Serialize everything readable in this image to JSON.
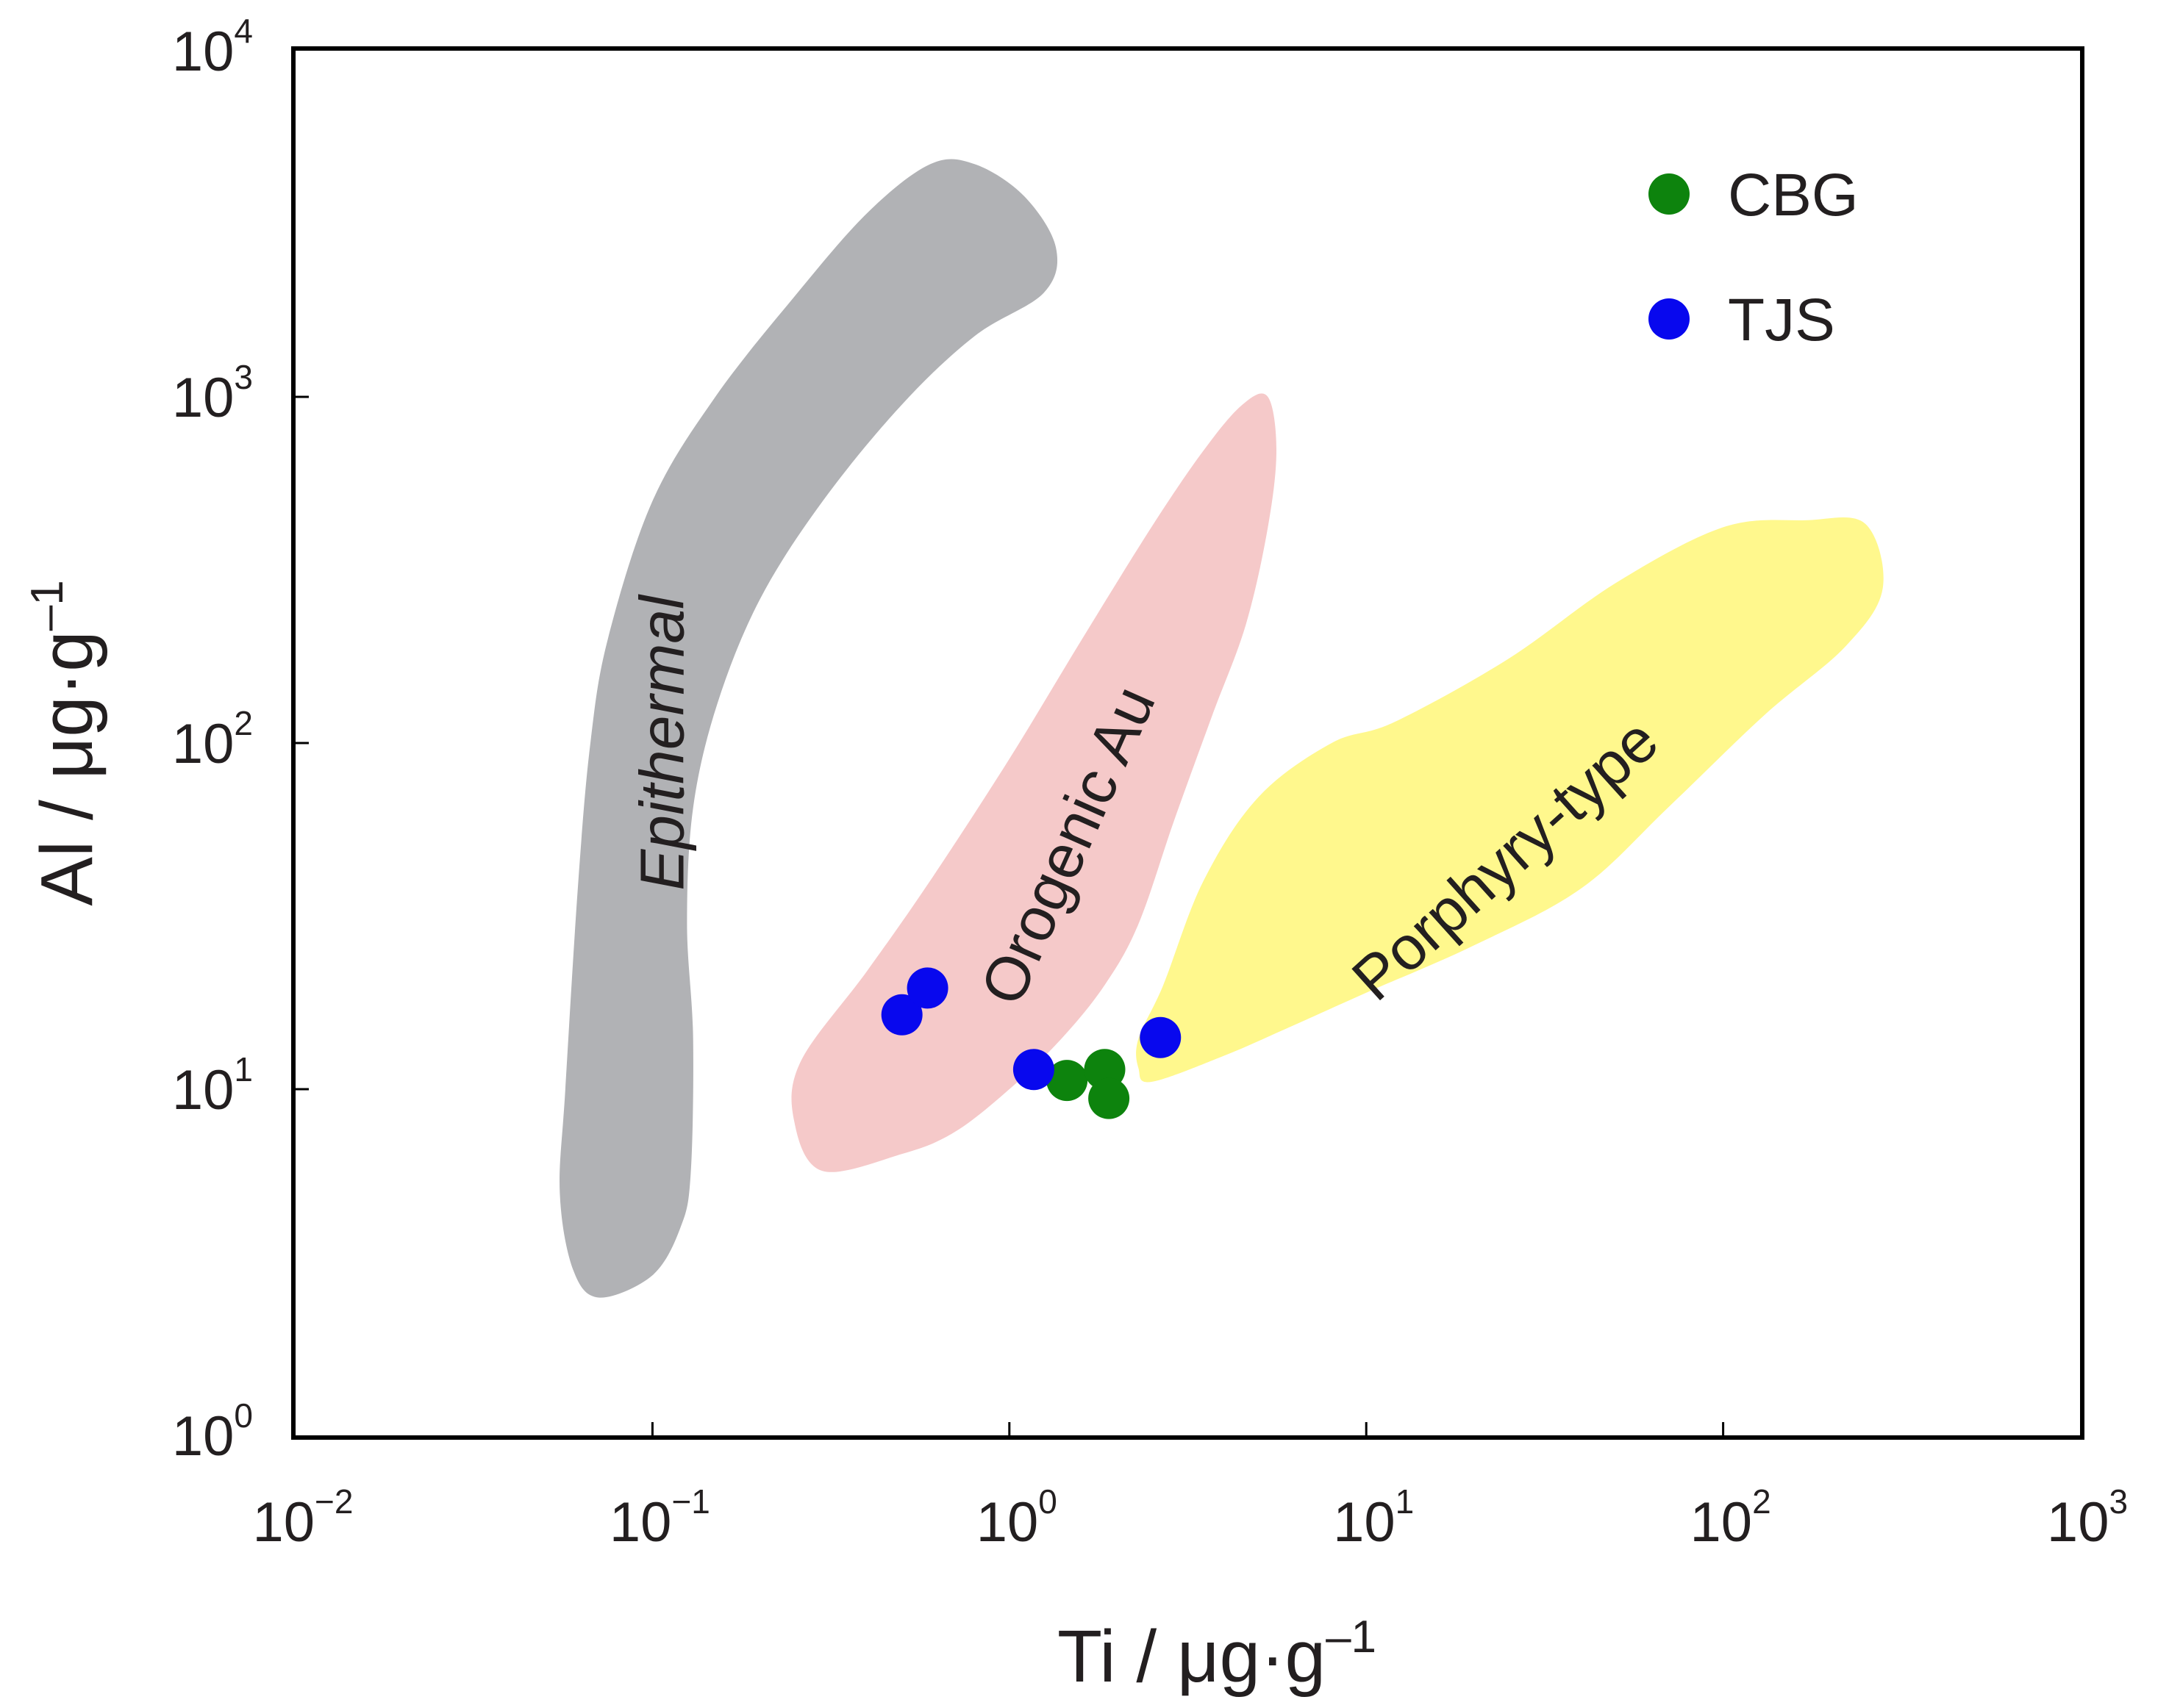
{
  "chart_data": {
    "type": "scatter",
    "xlabel": "Ti / μg·g",
    "xlabel_exp": "–1",
    "ylabel": "Al / μg·g",
    "ylabel_exp": "–1",
    "x_scale": "log",
    "y_scale": "log",
    "xlim": [
      0.01,
      1000
    ],
    "ylim": [
      1,
      10000
    ],
    "x_ticks": [
      {
        "value": 0.01,
        "base": "10",
        "exp": "−2"
      },
      {
        "value": 0.1,
        "base": "10",
        "exp": "−1"
      },
      {
        "value": 1,
        "base": "10",
        "exp": "0"
      },
      {
        "value": 10,
        "base": "10",
        "exp": "1"
      },
      {
        "value": 100,
        "base": "10",
        "exp": "2"
      },
      {
        "value": 1000,
        "base": "10",
        "exp": "3"
      }
    ],
    "y_ticks": [
      {
        "value": 1,
        "base": "10",
        "exp": "0"
      },
      {
        "value": 10,
        "base": "10",
        "exp": "1"
      },
      {
        "value": 100,
        "base": "10",
        "exp": "2"
      },
      {
        "value": 1000,
        "base": "10",
        "exp": "3"
      },
      {
        "value": 10000,
        "base": "10",
        "exp": "4"
      }
    ],
    "grid": false,
    "legend_position": "top-right",
    "fields": [
      {
        "name": "Epithermal",
        "color": "#b1b2b5",
        "label_at": [
          0.11,
          100
        ],
        "label_rotation": -90,
        "label_italic": true,
        "outline": [
          [
            0.071,
            2.5
          ],
          [
            0.1,
            2.9
          ],
          [
            0.12,
            4.0
          ],
          [
            0.128,
            5.7
          ],
          [
            0.13,
            14
          ],
          [
            0.125,
            30
          ],
          [
            0.13,
            65
          ],
          [
            0.152,
            130
          ],
          [
            0.2,
            260
          ],
          [
            0.3,
            500
          ],
          [
            0.5,
            950
          ],
          [
            0.8,
            1500
          ],
          [
            1.25,
            2000
          ],
          [
            1.35,
            2700
          ],
          [
            1.1,
            3800
          ],
          [
            0.8,
            4700
          ],
          [
            0.6,
            4700
          ],
          [
            0.4,
            3400
          ],
          [
            0.25,
            1950
          ],
          [
            0.15,
            1000
          ],
          [
            0.1,
            500
          ],
          [
            0.075,
            200
          ],
          [
            0.067,
            100
          ],
          [
            0.062,
            40
          ],
          [
            0.057,
            10
          ],
          [
            0.055,
            5
          ],
          [
            0.06,
            3
          ]
        ]
      },
      {
        "name": "Orogenic Au",
        "color": "#f5c9c9",
        "label_at": [
          1.5,
          50
        ],
        "label_rotation": -66,
        "label_italic": false,
        "outline": [
          [
            0.3,
            5.8
          ],
          [
            0.5,
            6.5
          ],
          [
            0.7,
            7.5
          ],
          [
            1.0,
            10
          ],
          [
            1.4,
            14
          ],
          [
            1.85,
            20
          ],
          [
            2.3,
            30
          ],
          [
            2.9,
            60
          ],
          [
            3.7,
            120
          ],
          [
            4.6,
            220
          ],
          [
            5.3,
            420
          ],
          [
            5.6,
            700
          ],
          [
            5.3,
            1000
          ],
          [
            4.5,
            950
          ],
          [
            3.5,
            700
          ],
          [
            2.5,
            420
          ],
          [
            1.6,
            200
          ],
          [
            1.0,
            90
          ],
          [
            0.6,
            40
          ],
          [
            0.4,
            22
          ],
          [
            0.26,
            12
          ],
          [
            0.25,
            8
          ]
        ]
      },
      {
        "name": "Porphyry-type",
        "color": "#fff88d",
        "label_at": [
          25,
          45
        ],
        "label_rotation": -42,
        "label_italic": false,
        "outline": [
          [
            2.5,
            10.5
          ],
          [
            4,
            12.5
          ],
          [
            6,
            15
          ],
          [
            10,
            19
          ],
          [
            20,
            26
          ],
          [
            40,
            38
          ],
          [
            70,
            65
          ],
          [
            130,
            120
          ],
          [
            220,
            190
          ],
          [
            280,
            280
          ],
          [
            250,
            430
          ],
          [
            170,
            440
          ],
          [
            100,
            420
          ],
          [
            50,
            290
          ],
          [
            25,
            175
          ],
          [
            12,
            115
          ],
          [
            8,
            100
          ],
          [
            5,
            70
          ],
          [
            3.5,
            40
          ],
          [
            2.7,
            20
          ],
          [
            2.3,
            14
          ],
          [
            2.3,
            11.5
          ]
        ]
      }
    ],
    "series": [
      {
        "name": "CBG",
        "color": "#0d830d",
        "points": [
          [
            1.45,
            10.6
          ],
          [
            1.85,
            11.4
          ],
          [
            1.9,
            9.4
          ]
        ]
      },
      {
        "name": "TJS",
        "color": "#0808ee",
        "points": [
          [
            0.5,
            16.4
          ],
          [
            0.59,
            19.6
          ],
          [
            1.17,
            11.4
          ],
          [
            2.65,
            14.1
          ]
        ]
      }
    ]
  }
}
